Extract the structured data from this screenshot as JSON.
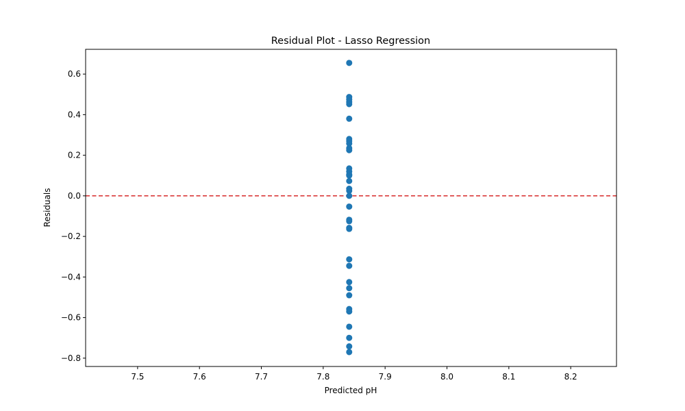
{
  "chart_data": {
    "type": "scatter",
    "title": "Residual Plot - Lasso Regression",
    "xlabel": "Predicted pH",
    "ylabel": "Residuals",
    "xlim": [
      7.416,
      8.274
    ],
    "ylim": [
      -0.841,
      0.722
    ],
    "xticks": [
      "7.5",
      "7.6",
      "7.7",
      "7.8",
      "7.9",
      "8.0",
      "8.1",
      "8.2"
    ],
    "yticks": [
      "-0.8",
      "-0.6",
      "-0.4",
      "-0.2",
      "0.0",
      "0.2",
      "0.4",
      "0.6"
    ],
    "grid": false,
    "reference_line": {
      "y": 0.0,
      "style": "dashed",
      "color": "#d62728"
    },
    "marker_color": "#1f77b4",
    "points": [
      {
        "x": 7.842,
        "y": 0.655
      },
      {
        "x": 7.842,
        "y": 0.487
      },
      {
        "x": 7.842,
        "y": 0.475
      },
      {
        "x": 7.842,
        "y": 0.462
      },
      {
        "x": 7.842,
        "y": 0.452
      },
      {
        "x": 7.842,
        "y": 0.38
      },
      {
        "x": 7.842,
        "y": 0.28
      },
      {
        "x": 7.842,
        "y": 0.27
      },
      {
        "x": 7.842,
        "y": 0.258
      },
      {
        "x": 7.842,
        "y": 0.235
      },
      {
        "x": 7.842,
        "y": 0.225
      },
      {
        "x": 7.842,
        "y": 0.135
      },
      {
        "x": 7.842,
        "y": 0.12
      },
      {
        "x": 7.842,
        "y": 0.105
      },
      {
        "x": 7.842,
        "y": 0.1
      },
      {
        "x": 7.842,
        "y": 0.073
      },
      {
        "x": 7.842,
        "y": 0.035
      },
      {
        "x": 7.842,
        "y": 0.025
      },
      {
        "x": 7.842,
        "y": 0.0
      },
      {
        "x": 7.842,
        "y": -0.053
      },
      {
        "x": 7.842,
        "y": -0.118
      },
      {
        "x": 7.842,
        "y": -0.125
      },
      {
        "x": 7.842,
        "y": -0.158
      },
      {
        "x": 7.842,
        "y": -0.163
      },
      {
        "x": 7.842,
        "y": -0.313
      },
      {
        "x": 7.842,
        "y": -0.345
      },
      {
        "x": 7.842,
        "y": -0.425
      },
      {
        "x": 7.842,
        "y": -0.455
      },
      {
        "x": 7.842,
        "y": -0.49
      },
      {
        "x": 7.842,
        "y": -0.558
      },
      {
        "x": 7.842,
        "y": -0.57
      },
      {
        "x": 7.842,
        "y": -0.645
      },
      {
        "x": 7.842,
        "y": -0.7
      },
      {
        "x": 7.842,
        "y": -0.742
      },
      {
        "x": 7.842,
        "y": -0.77
      }
    ]
  }
}
